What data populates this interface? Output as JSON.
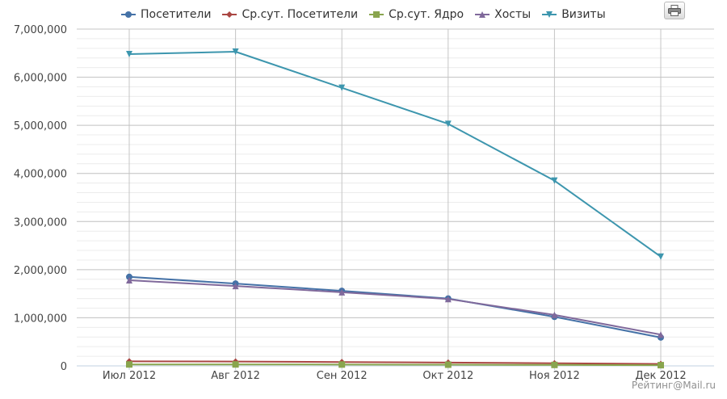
{
  "chart_data": {
    "type": "line",
    "categories": [
      "Июл 2012",
      "Авг 2012",
      "Сен 2012",
      "Окт 2012",
      "Ноя 2012",
      "Дек 2012"
    ],
    "ylim": [
      0,
      7000000
    ],
    "yticks": [
      0,
      1000000,
      2000000,
      3000000,
      4000000,
      5000000,
      6000000,
      7000000
    ],
    "ytick_labels": [
      "0",
      "1,000,000",
      "2,000,000",
      "3,000,000",
      "4,000,000",
      "5,000,000",
      "6,000,000",
      "7,000,000"
    ],
    "grid": true,
    "legend_position": "top",
    "series": [
      {
        "name": "Посетители",
        "color": "#4572a7",
        "marker": "circle",
        "values": [
          1850000,
          1710000,
          1560000,
          1400000,
          1020000,
          590000
        ]
      },
      {
        "name": "Ср.сут. Посетители",
        "color": "#aa4643",
        "marker": "diamond",
        "values": [
          95000,
          90000,
          80000,
          70000,
          55000,
          40000
        ]
      },
      {
        "name": "Ср.сут. Ядро",
        "color": "#89a54e",
        "marker": "square",
        "values": [
          30000,
          30000,
          28000,
          25000,
          20000,
          15000
        ]
      },
      {
        "name": "Хосты",
        "color": "#80699b",
        "marker": "triangle",
        "values": [
          1780000,
          1660000,
          1530000,
          1390000,
          1060000,
          650000
        ]
      },
      {
        "name": "Визиты",
        "color": "#3d96ae",
        "marker": "triangle-down",
        "values": [
          6480000,
          6530000,
          5780000,
          5030000,
          3850000,
          2270000
        ]
      }
    ]
  },
  "credit": "Рейтинг@Mail.ru",
  "toolbar": {
    "print_icon": "printer-icon"
  }
}
